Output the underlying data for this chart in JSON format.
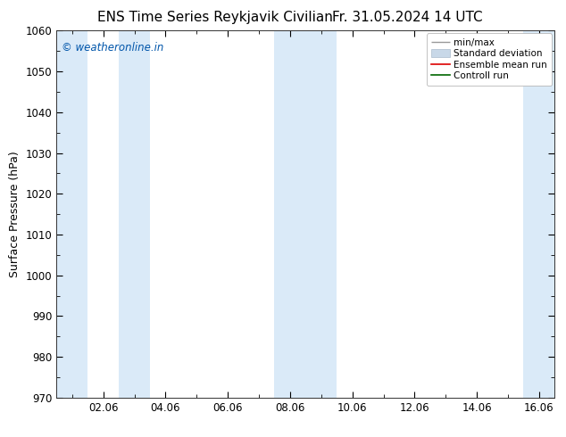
{
  "title_left": "ENS Time Series Reykjavik Civilian",
  "title_right": "Fr. 31.05.2024 14 UTC",
  "ylabel": "Surface Pressure (hPa)",
  "ylim": [
    970,
    1060
  ],
  "yticks": [
    970,
    980,
    990,
    1000,
    1010,
    1020,
    1030,
    1040,
    1050,
    1060
  ],
  "x_tick_labels": [
    "02.06",
    "04.06",
    "06.06",
    "08.06",
    "10.06",
    "12.06",
    "14.06",
    "16.06"
  ],
  "x_tick_positions": [
    2,
    4,
    6,
    8,
    10,
    12,
    14,
    16
  ],
  "watermark": "© weatheronline.in",
  "watermark_color": "#0055aa",
  "background_color": "#ffffff",
  "plot_bg_color": "#ffffff",
  "band_color": "#daeaf8",
  "legend_labels": [
    "min/max",
    "Standard deviation",
    "Ensemble mean run",
    "Controll run"
  ],
  "legend_line_colors": [
    "#999999",
    "#c8d8e8",
    "#dd0000",
    "#006600"
  ],
  "title_fontsize": 11,
  "axis_fontsize": 9,
  "tick_fontsize": 8.5,
  "x_xlim_start": 0.5,
  "x_xlim_end": 16.5,
  "shaded_bands": [
    {
      "x_start": 0.5,
      "x_end": 1.5
    },
    {
      "x_start": 2.5,
      "x_end": 3.5
    },
    {
      "x_start": 7.5,
      "x_end": 9.5
    },
    {
      "x_start": 15.5,
      "x_end": 16.5
    }
  ]
}
